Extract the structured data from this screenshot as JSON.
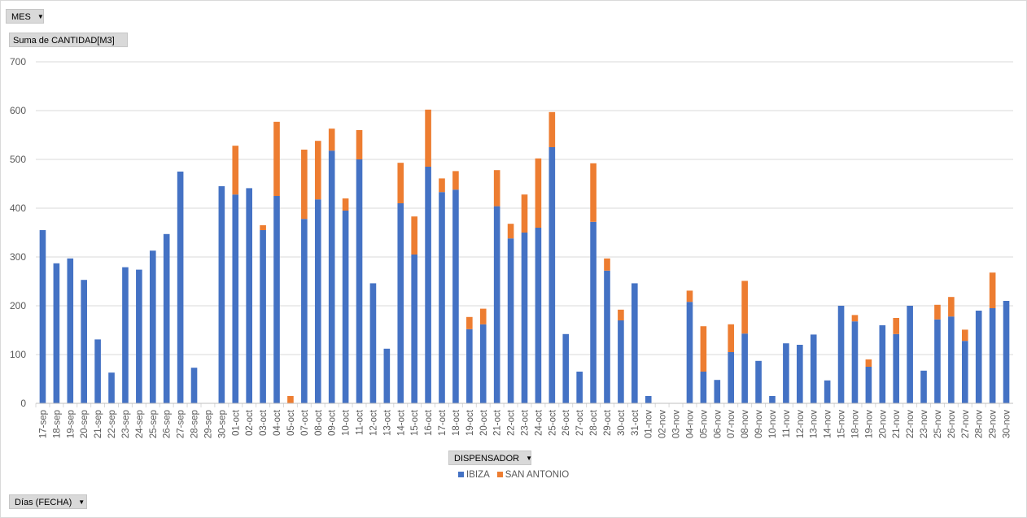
{
  "filters": {
    "mes_label": "MES",
    "measure_label": "Suma de CANTIDAD[M3]",
    "dispensador_label": "DISPENSADOR",
    "dias_label": "Días (FECHA)"
  },
  "colors": {
    "ibiza": "#4472c4",
    "san_antonio": "#ed7d31",
    "grid": "#d9d9d9",
    "axis_text": "#595959"
  },
  "chart_data": {
    "type": "bar",
    "stacked": true,
    "title": "",
    "xlabel": "",
    "ylabel": "",
    "ylim": [
      0,
      700
    ],
    "yticks": [
      0,
      100,
      200,
      300,
      400,
      500,
      600,
      700
    ],
    "grid": true,
    "legend_position": "bottom",
    "categories": [
      "17-sep",
      "18-sep",
      "19-sep",
      "20-sep",
      "21-sep",
      "22-sep",
      "23-sep",
      "24-sep",
      "25-sep",
      "26-sep",
      "27-sep",
      "28-sep",
      "29-sep",
      "30-sep",
      "01-oct",
      "02-oct",
      "03-oct",
      "04-oct",
      "05-oct",
      "07-oct",
      "08-oct",
      "09-oct",
      "10-oct",
      "11-oct",
      "12-oct",
      "13-oct",
      "14-oct",
      "15-oct",
      "16-oct",
      "17-oct",
      "18-oct",
      "19-oct",
      "20-oct",
      "21-oct",
      "22-oct",
      "23-oct",
      "24-oct",
      "25-oct",
      "26-oct",
      "27-oct",
      "28-oct",
      "29-oct",
      "30-oct",
      "31-oct",
      "01-nov",
      "02-nov",
      "03-nov",
      "04-nov",
      "05-nov",
      "06-nov",
      "07-nov",
      "08-nov",
      "09-nov",
      "10-nov",
      "11-nov",
      "12-nov",
      "13-nov",
      "14-nov",
      "15-nov",
      "18-nov",
      "19-nov",
      "20-nov",
      "21-nov",
      "22-nov",
      "23-nov",
      "25-nov",
      "26-nov",
      "27-nov",
      "28-nov",
      "29-nov",
      "30-nov"
    ],
    "series": [
      {
        "name": "IBIZA",
        "values": [
          355,
          287,
          297,
          253,
          131,
          63,
          279,
          274,
          313,
          347,
          475,
          73,
          0,
          445,
          428,
          441,
          355,
          425,
          0,
          378,
          418,
          518,
          395,
          500,
          246,
          112,
          410,
          305,
          485,
          433,
          438,
          152,
          162,
          404,
          338,
          350,
          360,
          525,
          142,
          65,
          372,
          272,
          170,
          246,
          15,
          0,
          0,
          208,
          65,
          48,
          105,
          143,
          87,
          15,
          123,
          120,
          141,
          47,
          200,
          168,
          75,
          160,
          142,
          200,
          67,
          172,
          178,
          128,
          190,
          195,
          210
        ]
      },
      {
        "name": "SAN ANTONIO",
        "values": [
          0,
          0,
          0,
          0,
          0,
          0,
          0,
          0,
          0,
          0,
          0,
          0,
          0,
          0,
          100,
          0,
          10,
          152,
          15,
          142,
          120,
          45,
          25,
          60,
          0,
          0,
          83,
          78,
          117,
          28,
          38,
          25,
          32,
          74,
          30,
          78,
          142,
          72,
          0,
          0,
          120,
          25,
          22,
          0,
          0,
          0,
          0,
          23,
          93,
          0,
          57,
          108,
          0,
          0,
          0,
          0,
          0,
          0,
          0,
          13,
          15,
          0,
          33,
          0,
          0,
          30,
          40,
          23,
          0,
          73,
          0
        ]
      }
    ]
  }
}
